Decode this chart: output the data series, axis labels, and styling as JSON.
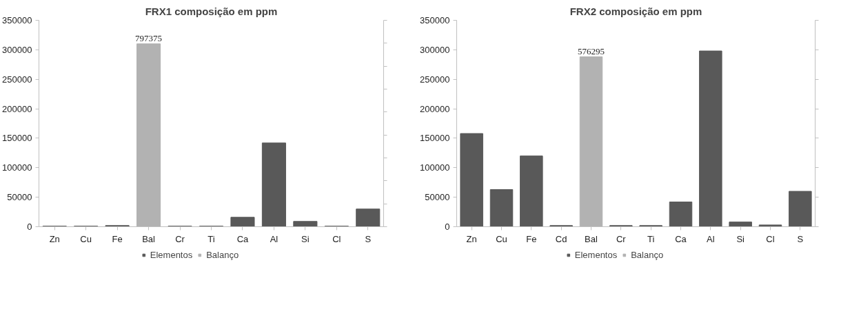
{
  "chart_data": [
    {
      "type": "bar",
      "title": "FRX1 composição em ppm",
      "categories": [
        "Zn",
        "Cu",
        "Fe",
        "Bal",
        "Cr",
        "Ti",
        "Ca",
        "Al",
        "Si",
        "Cl",
        "S"
      ],
      "series": [
        {
          "name": "Elementos",
          "color": "#595959",
          "values": [
            1000,
            1000,
            2000,
            null,
            1000,
            1000,
            16000,
            142000,
            9000,
            1000,
            30000
          ]
        },
        {
          "name": "Balanço",
          "color": "#b2b2b2",
          "axis": "y2",
          "values": [
            null,
            null,
            null,
            797375,
            null,
            null,
            null,
            null,
            null,
            null,
            null
          ],
          "value_labels": [
            null,
            null,
            null,
            "797375",
            null,
            null,
            null,
            null,
            null,
            null,
            null
          ]
        }
      ],
      "ylim": [
        0,
        350000
      ],
      "yticks": [
        0,
        50000,
        100000,
        150000,
        200000,
        250000,
        300000,
        350000
      ],
      "y2lim": [
        0,
        900000
      ],
      "y2ticks": [
        {
          "value": 0,
          "label": null
        },
        {
          "value": 100000,
          "label": null
        },
        {
          "value": 200000,
          "label": null
        },
        {
          "value": 300000,
          "label": null
        },
        {
          "value": 400000,
          "label": null
        },
        {
          "value": 500000,
          "label": null
        },
        {
          "value": 600000,
          "label": null
        },
        {
          "value": 700000,
          "label": null
        },
        {
          "value": 800000,
          "label": null
        },
        {
          "value": 900000,
          "label": null
        }
      ],
      "grid": false,
      "legend": "bottom"
    },
    {
      "type": "bar",
      "title": "FRX2 composição em ppm",
      "categories": [
        "Zn",
        "Cu",
        "Fe",
        "Cd",
        "Bal",
        "Cr",
        "Ti",
        "Ca",
        "Al",
        "Si",
        "Cl",
        "S"
      ],
      "series": [
        {
          "name": "Elementos",
          "color": "#595959",
          "values": [
            158000,
            63000,
            120000,
            2000,
            null,
            2000,
            2000,
            42000,
            298000,
            8000,
            3000,
            60000
          ]
        },
        {
          "name": "Balanço",
          "color": "#b2b2b2",
          "axis": "y2",
          "values": [
            null,
            null,
            null,
            null,
            576295,
            null,
            null,
            null,
            null,
            null,
            null,
            null
          ],
          "value_labels": [
            null,
            null,
            null,
            null,
            "576295",
            null,
            null,
            null,
            null,
            null,
            null,
            null
          ]
        }
      ],
      "ylim": [
        0,
        350000
      ],
      "yticks": [
        0,
        50000,
        100000,
        150000,
        200000,
        250000,
        300000,
        350000
      ],
      "y2lim": [
        0,
        700000
      ],
      "y2ticks": [
        {
          "value": 0,
          "label": null
        },
        {
          "value": 100000,
          "label": null
        },
        {
          "value": 200000,
          "label": null
        },
        {
          "value": 300000,
          "label": null
        },
        {
          "value": 400000,
          "label": null
        },
        {
          "value": 500000,
          "label": null
        },
        {
          "value": 600000,
          "label": null
        },
        {
          "value": 700000,
          "label": null
        }
      ],
      "grid": false,
      "legend": "bottom"
    }
  ]
}
